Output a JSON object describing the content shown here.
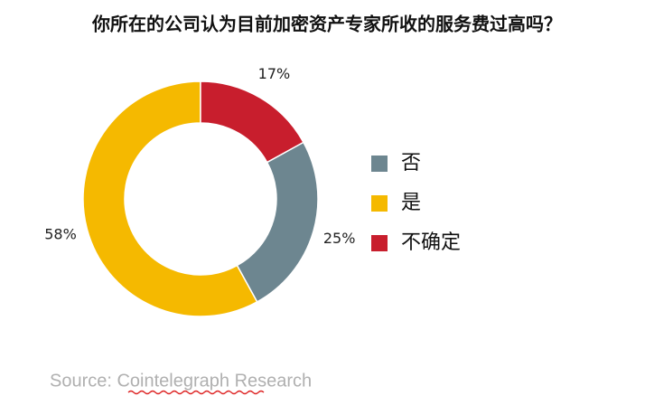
{
  "chart_data": {
    "type": "donut",
    "title": "你所在的公司认为目前加密资产专家所收的服务费过高吗？",
    "categories": [
      "否",
      "是",
      "不确定"
    ],
    "values": [
      25,
      58,
      17
    ],
    "value_labels": [
      "25%",
      "58%",
      "17%"
    ],
    "colors": [
      "#6d8690",
      "#f5b900",
      "#c81e2d"
    ],
    "start_angle": 61.2,
    "legend": "right",
    "source": "Source: Cointelegraph Research"
  }
}
